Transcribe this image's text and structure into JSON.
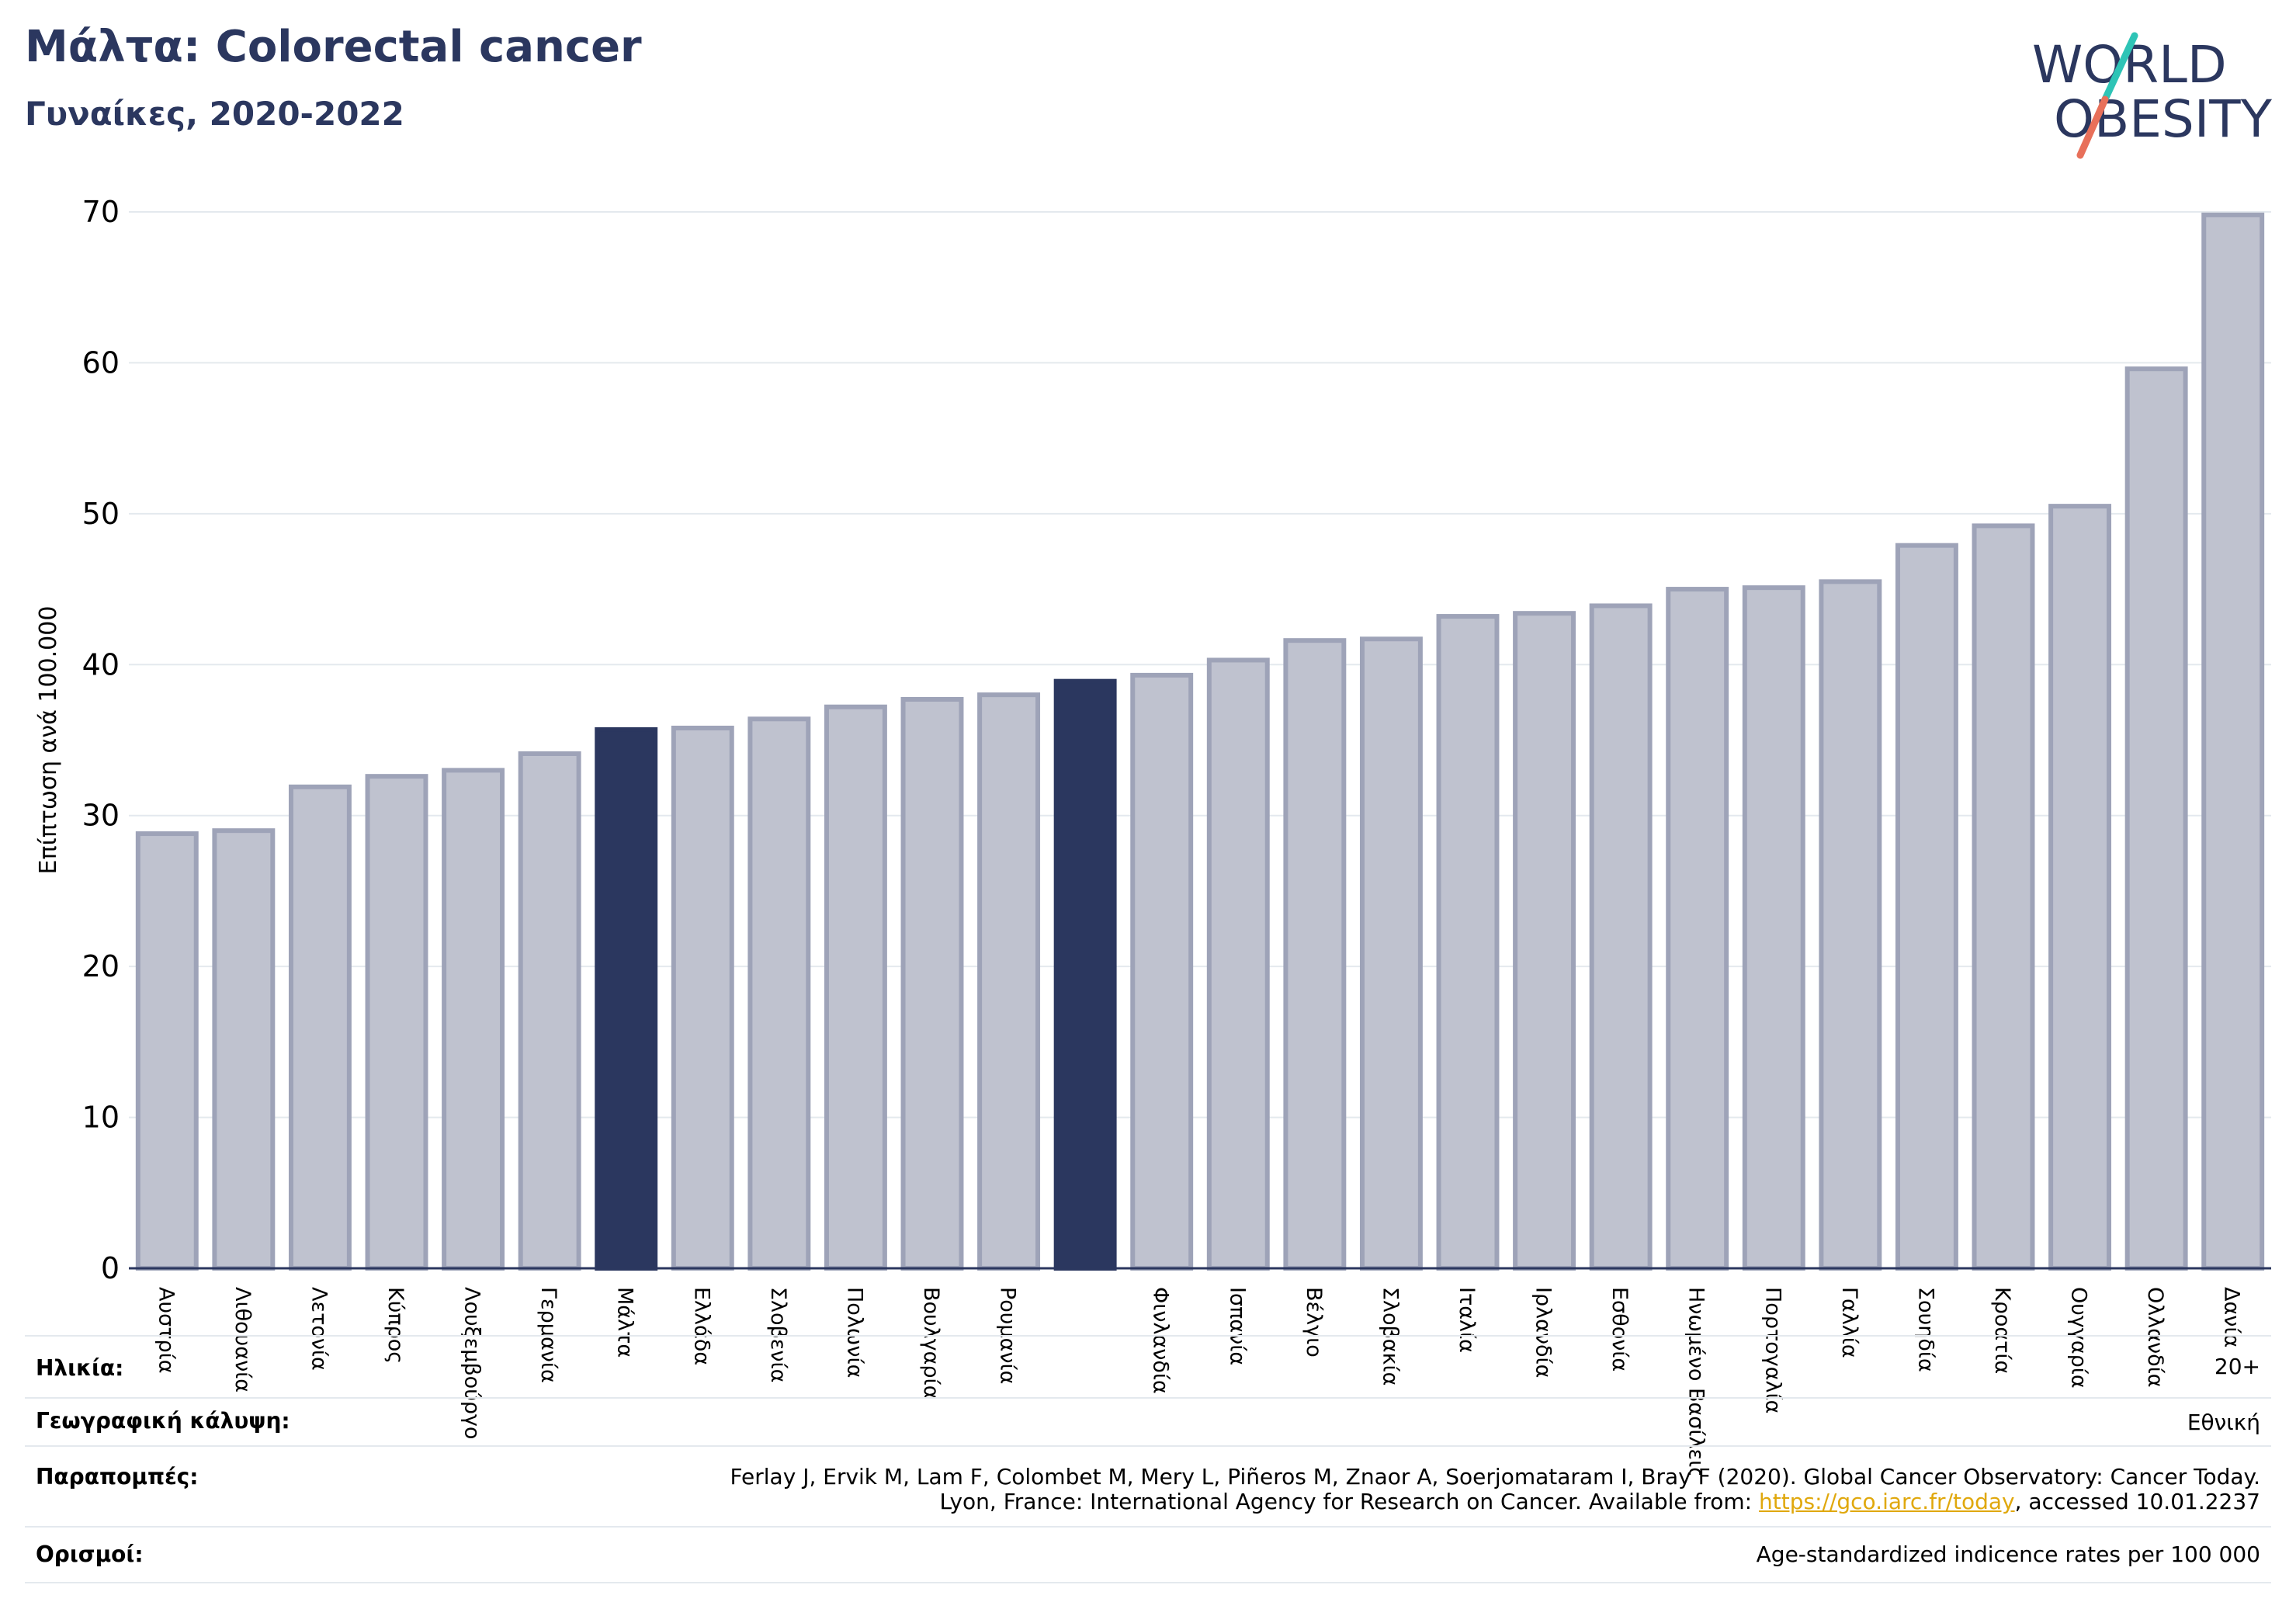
{
  "header": {
    "title": "Μάλτα: Colorectal cancer",
    "subtitle": "Γυναίκες, 2020-2022"
  },
  "logo": {
    "line1": "WORLD",
    "line2": "OBESITY",
    "icon": "world-obesity-logo",
    "colors": {
      "text": "#2b375f",
      "slash_top": "#2ec4b6",
      "slash_bottom": "#e8705a"
    }
  },
  "chart_data": {
    "type": "bar",
    "ylabel": "Επίπτωση ανά 100.000",
    "ylim": [
      0,
      70
    ],
    "yticks": [
      0,
      10,
      20,
      30,
      40,
      50,
      60,
      70
    ],
    "grid": true,
    "categories": [
      "Αυστρία",
      "Λιθουανία",
      "Λετονία",
      "Κύπρος",
      "Λουξεμβούργο",
      "Γερμανία",
      "Μάλτα",
      "Ελλάδα",
      "Σλοβενία",
      "Πολωνία",
      "Βουλγαρία",
      "Ρουμανία",
      "",
      "Φινλανδία",
      "Ισπανία",
      "Βέλγιο",
      "Σλοβακία",
      "Ιταλία",
      "Ιρλανδία",
      "Εσθονία",
      "Ηνωμένο Βασίλειο",
      "Πορτογαλία",
      "Γαλλία",
      "Σουηδία",
      "Κροατία",
      "Ουγγαρία",
      "Ολλανδία",
      "Δανία"
    ],
    "values": [
      28.8,
      29.0,
      31.9,
      32.6,
      33.0,
      34.1,
      35.7,
      35.8,
      36.4,
      37.2,
      37.7,
      38.0,
      38.9,
      39.3,
      40.3,
      41.6,
      41.7,
      43.2,
      43.4,
      43.9,
      45.0,
      45.1,
      45.5,
      47.9,
      49.2,
      50.5,
      59.6,
      69.8
    ],
    "highlighted": [
      "Μάλτα",
      ""
    ],
    "colors": {
      "bar": "#bfc2cf",
      "bar_border": "#9ea3b8",
      "highlight": "#2b375f",
      "axis": "#2b375f",
      "grid": "#e4e9ee"
    }
  },
  "info": {
    "age_label": "Ηλικία:",
    "age_value": "20+",
    "coverage_label": "Γεωγραφική κάλυψη:",
    "coverage_value": "Εθνική",
    "refs_label": "Παραπομπές:",
    "refs_line1": "Ferlay J, Ervik M, Lam F, Colombet M, Mery L, Piñeros M, Znaor A, Soerjomataram I, Bray F (2020). Global Cancer Observatory: Cancer Today.",
    "refs_line2_pre": "Lyon, France: International Agency for Research on Cancer. Available from: ",
    "refs_link": "https://gco.iarc.fr/today",
    "refs_line2_post": ", accessed 10.01.2237",
    "defs_label": "Ορισμοί:",
    "defs_value": "Age-standardized indicence rates per 100 000"
  }
}
